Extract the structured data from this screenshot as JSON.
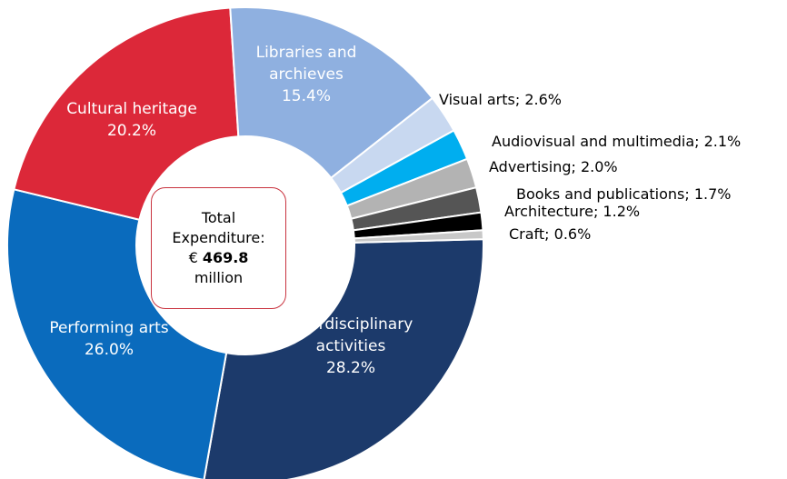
{
  "chart_data": {
    "type": "pie",
    "donut": true,
    "slices": [
      {
        "label_lines": [
          "Interdisciplinary",
          "activities"
        ],
        "value": 28.2,
        "value_text": "28.2%",
        "color": "#1c3a6b",
        "label_position": "inside"
      },
      {
        "label_lines": [
          "Performing arts"
        ],
        "value": 26.0,
        "value_text": "26.0%",
        "color": "#0a6bbd",
        "label_position": "inside"
      },
      {
        "label_lines": [
          "Cultural heritage"
        ],
        "value": 20.2,
        "value_text": "20.2%",
        "color": "#dc2839",
        "label_position": "inside"
      },
      {
        "label_lines": [
          "Libraries and",
          "archieves"
        ],
        "value": 15.4,
        "value_text": "15.4%",
        "color": "#8fb0e0",
        "label_position": "inside"
      },
      {
        "label_lines": [
          "Visual arts; 2.6%"
        ],
        "value": 2.6,
        "value_text": "",
        "color": "#c8d8f0",
        "label_position": "outside"
      },
      {
        "label_lines": [
          "Audiovisual and multimedia; 2.1%"
        ],
        "value": 2.1,
        "value_text": "",
        "color": "#00aeef",
        "label_position": "outside"
      },
      {
        "label_lines": [
          "Advertising; 2.0%"
        ],
        "value": 2.0,
        "value_text": "",
        "color": "#b3b3b3",
        "label_position": "outside"
      },
      {
        "label_lines": [
          "Books and publications; 1.7%"
        ],
        "value": 1.7,
        "value_text": "",
        "color": "#555555",
        "label_position": "outside"
      },
      {
        "label_lines": [
          "Architecture; 1.2%"
        ],
        "value": 1.2,
        "value_text": "",
        "color": "#000000",
        "label_position": "outside"
      },
      {
        "label_lines": [
          "Craft; 0.6%"
        ],
        "value": 0.6,
        "value_text": "",
        "color": "#c8c8c8",
        "label_position": "outside"
      }
    ],
    "center_label": {
      "line1": "Total",
      "line2": "Expenditure:",
      "currency": "€ ",
      "value": "469.8",
      "line4": "million"
    }
  }
}
